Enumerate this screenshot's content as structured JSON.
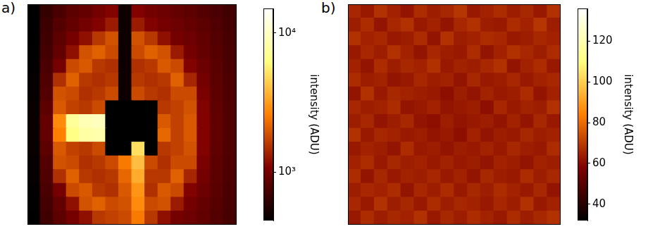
{
  "chart_data": [
    {
      "type": "heatmap",
      "title": "a)",
      "tick_labels": false,
      "cells": [
        [
          450,
          650,
          750,
          850,
          900,
          1000,
          1100,
          500,
          1100,
          1000,
          950,
          900,
          850,
          800,
          750,
          700
        ],
        [
          450,
          680,
          800,
          900,
          1000,
          1100,
          1300,
          500,
          1300,
          1100,
          1000,
          950,
          900,
          850,
          780,
          720
        ],
        [
          450,
          700,
          850,
          1000,
          1200,
          1600,
          1900,
          500,
          1900,
          1600,
          1200,
          1000,
          950,
          880,
          800,
          730
        ],
        [
          460,
          720,
          900,
          1200,
          1900,
          2100,
          1800,
          500,
          1800,
          2100,
          1900,
          1300,
          1000,
          900,
          820,
          740
        ],
        [
          460,
          750,
          1000,
          1800,
          2000,
          1600,
          1500,
          500,
          1500,
          1600,
          2000,
          1800,
          1100,
          950,
          840,
          750
        ],
        [
          470,
          780,
          1500,
          2100,
          1600,
          1500,
          1600,
          500,
          1600,
          1500,
          1600,
          2100,
          1400,
          1000,
          850,
          760
        ],
        [
          470,
          800,
          1900,
          1800,
          1500,
          1600,
          1800,
          500,
          1800,
          1600,
          1500,
          1800,
          1800,
          1050,
          860,
          770
        ],
        [
          480,
          850,
          2000,
          1700,
          1600,
          1800,
          450,
          450,
          450,
          450,
          1600,
          1700,
          1900,
          1100,
          870,
          780
        ],
        [
          480,
          900,
          2800,
          7500,
          9000,
          9500,
          450,
          450,
          450,
          450,
          2000,
          1700,
          2000,
          1100,
          880,
          780
        ],
        [
          480,
          900,
          2600,
          6500,
          8000,
          8500,
          450,
          450,
          450,
          450,
          2200,
          1700,
          2000,
          1100,
          880,
          780
        ],
        [
          480,
          850,
          2000,
          1700,
          1600,
          1800,
          450,
          450,
          5000,
          450,
          1600,
          1700,
          1900,
          1100,
          870,
          780
        ],
        [
          470,
          800,
          1900,
          1800,
          1500,
          1600,
          1800,
          2500,
          4000,
          1800,
          1500,
          1800,
          1800,
          1050,
          860,
          770
        ],
        [
          470,
          780,
          1500,
          2100,
          1600,
          1500,
          1600,
          2200,
          3500,
          1600,
          1600,
          2100,
          1400,
          1000,
          850,
          760
        ],
        [
          460,
          750,
          1000,
          1800,
          2000,
          1600,
          1500,
          2000,
          3000,
          1500,
          2000,
          1800,
          1100,
          950,
          840,
          750
        ],
        [
          460,
          720,
          900,
          1200,
          1900,
          2100,
          1800,
          1900,
          2800,
          1800,
          1900,
          1300,
          1000,
          900,
          820,
          740
        ],
        [
          450,
          700,
          850,
          1000,
          1200,
          1600,
          1700,
          1800,
          2500,
          1600,
          1200,
          1000,
          950,
          880,
          800,
          730
        ]
      ],
      "colorbar": {
        "label": "intensity (ADU)",
        "log": true,
        "range": [
          450,
          15000
        ],
        "ticks": [
          {
            "value": 1000,
            "label": "10³"
          },
          {
            "value": 10000,
            "label": "10⁴"
          }
        ]
      }
    },
    {
      "type": "heatmap",
      "title": "b)",
      "tick_labels": false,
      "cells": [
        [
          66,
          63,
          68,
          65,
          62,
          67,
          64,
          66,
          69,
          63,
          65,
          67,
          64,
          66,
          63,
          68
        ],
        [
          64,
          67,
          62,
          66,
          68,
          63,
          65,
          62,
          66,
          68,
          64,
          63,
          67,
          65,
          69,
          64
        ],
        [
          68,
          65,
          66,
          63,
          64,
          67,
          62,
          68,
          64,
          65,
          67,
          66,
          63,
          64,
          66,
          65
        ],
        [
          63,
          66,
          64,
          68,
          65,
          62,
          66,
          64,
          63,
          67,
          62,
          65,
          68,
          66,
          64,
          67
        ],
        [
          65,
          62,
          67,
          64,
          66,
          65,
          68,
          63,
          65,
          64,
          66,
          68,
          62,
          65,
          67,
          63
        ],
        [
          67,
          64,
          65,
          62,
          63,
          66,
          64,
          65,
          62,
          66,
          63,
          64,
          66,
          63,
          65,
          66
        ],
        [
          62,
          68,
          63,
          66,
          65,
          64,
          63,
          61,
          64,
          62,
          65,
          63,
          64,
          67,
          62,
          65
        ],
        [
          66,
          64,
          65,
          67,
          62,
          63,
          65,
          62,
          63,
          64,
          61,
          66,
          63,
          65,
          64,
          68
        ],
        [
          64,
          66,
          62,
          64,
          66,
          62,
          61,
          64,
          62,
          63,
          64,
          62,
          65,
          62,
          66,
          63
        ],
        [
          68,
          63,
          66,
          65,
          63,
          64,
          62,
          63,
          61,
          65,
          62,
          64,
          63,
          66,
          64,
          65
        ],
        [
          63,
          65,
          64,
          62,
          67,
          63,
          64,
          62,
          64,
          63,
          65,
          63,
          66,
          64,
          63,
          67
        ],
        [
          65,
          67,
          63,
          66,
          64,
          65,
          63,
          65,
          63,
          64,
          62,
          65,
          64,
          62,
          65,
          64
        ],
        [
          67,
          62,
          66,
          63,
          65,
          64,
          66,
          63,
          65,
          62,
          66,
          64,
          63,
          67,
          64,
          66
        ],
        [
          64,
          66,
          65,
          67,
          62,
          66,
          64,
          67,
          63,
          66,
          64,
          67,
          65,
          63,
          66,
          62
        ],
        [
          66,
          63,
          68,
          64,
          66,
          63,
          67,
          64,
          66,
          65,
          63,
          66,
          64,
          68,
          63,
          65
        ],
        [
          63,
          67,
          64,
          66,
          65,
          68,
          63,
          66,
          64,
          67,
          65,
          63,
          67,
          64,
          66,
          68
        ]
      ],
      "colorbar": {
        "label": "intensity (ADU)",
        "range": [
          32,
          136
        ],
        "ticks": [
          40,
          60,
          80,
          100,
          120
        ]
      }
    }
  ]
}
